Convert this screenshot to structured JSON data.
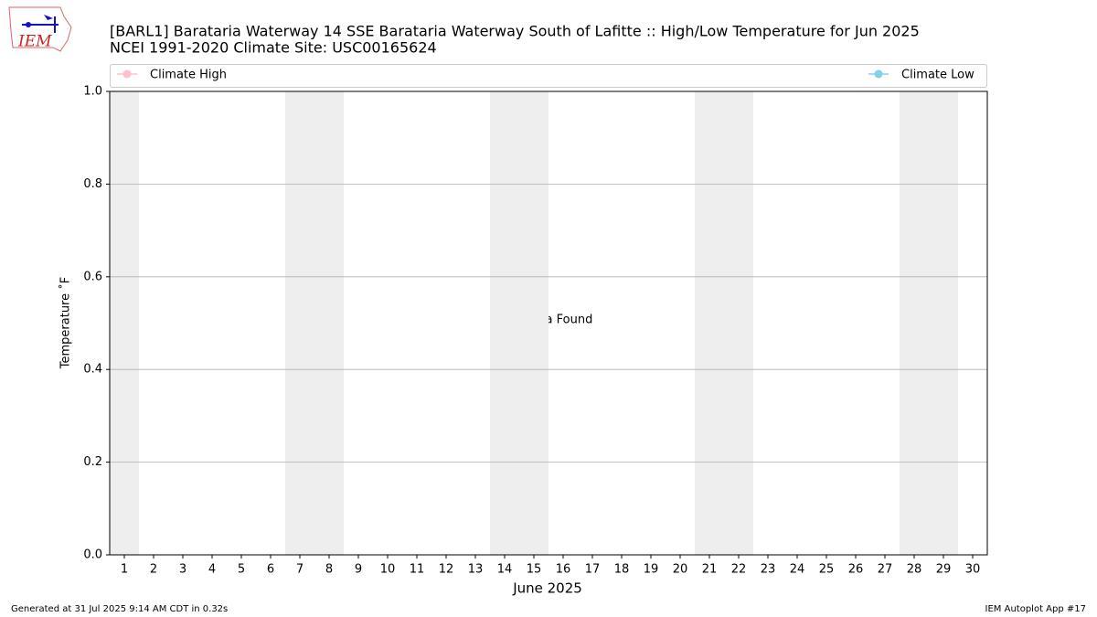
{
  "chart_data": {
    "type": "line",
    "logo_text": "IEM",
    "title": "[BARL1] Barataria Waterway 14 SSE Barataria Waterway South of Lafitte :: High/Low Temperature for Jun 2025",
    "subtitle": "NCEI 1991-2020 Climate Site: USC00165624",
    "xlabel": "June 2025",
    "ylabel": "Temperature ˚F",
    "annotation": "No Data Found",
    "footer_left": "Generated at 31 Jul 2025 9:14 AM CDT in 0.32s",
    "footer_right": "IEM Autoplot App #17",
    "x": [
      1,
      2,
      3,
      4,
      5,
      6,
      7,
      8,
      9,
      10,
      11,
      12,
      13,
      14,
      15,
      16,
      17,
      18,
      19,
      20,
      21,
      22,
      23,
      24,
      25,
      26,
      27,
      28,
      29,
      30
    ],
    "series": [
      {
        "name": "Climate High",
        "color": "#ffc0cb",
        "values": [
          null,
          null,
          null,
          null,
          null,
          null,
          null,
          null,
          null,
          null,
          null,
          null,
          null,
          null,
          null,
          null,
          null,
          null,
          null,
          null,
          null,
          null,
          null,
          null,
          null,
          null,
          null,
          null,
          null,
          null
        ]
      },
      {
        "name": "Climate Low",
        "color": "#87ceeb",
        "values": [
          null,
          null,
          null,
          null,
          null,
          null,
          null,
          null,
          null,
          null,
          null,
          null,
          null,
          null,
          null,
          null,
          null,
          null,
          null,
          null,
          null,
          null,
          null,
          null,
          null,
          null,
          null,
          null,
          null,
          null
        ]
      }
    ],
    "xlim": [
      0.5,
      30.5
    ],
    "xticks": [
      1,
      2,
      3,
      4,
      5,
      6,
      7,
      8,
      9,
      10,
      11,
      12,
      13,
      14,
      15,
      16,
      17,
      18,
      19,
      20,
      21,
      22,
      23,
      24,
      25,
      26,
      27,
      28,
      29,
      30
    ],
    "ylim": [
      0,
      1
    ],
    "yticks": [
      {
        "value": 0,
        "label": "0.0"
      },
      {
        "value": 0.2,
        "label": "0.2"
      },
      {
        "value": 0.4,
        "label": "0.4"
      },
      {
        "value": 0.6,
        "label": "0.6"
      },
      {
        "value": 0.8,
        "label": "0.8"
      },
      {
        "value": 1,
        "label": "1.0"
      }
    ],
    "grid": true,
    "shaded_ranges": [
      [
        0.5,
        1.5
      ],
      [
        6.5,
        8.5
      ],
      [
        13.5,
        15.5
      ],
      [
        20.5,
        22.5
      ],
      [
        27.5,
        29.5
      ]
    ]
  }
}
